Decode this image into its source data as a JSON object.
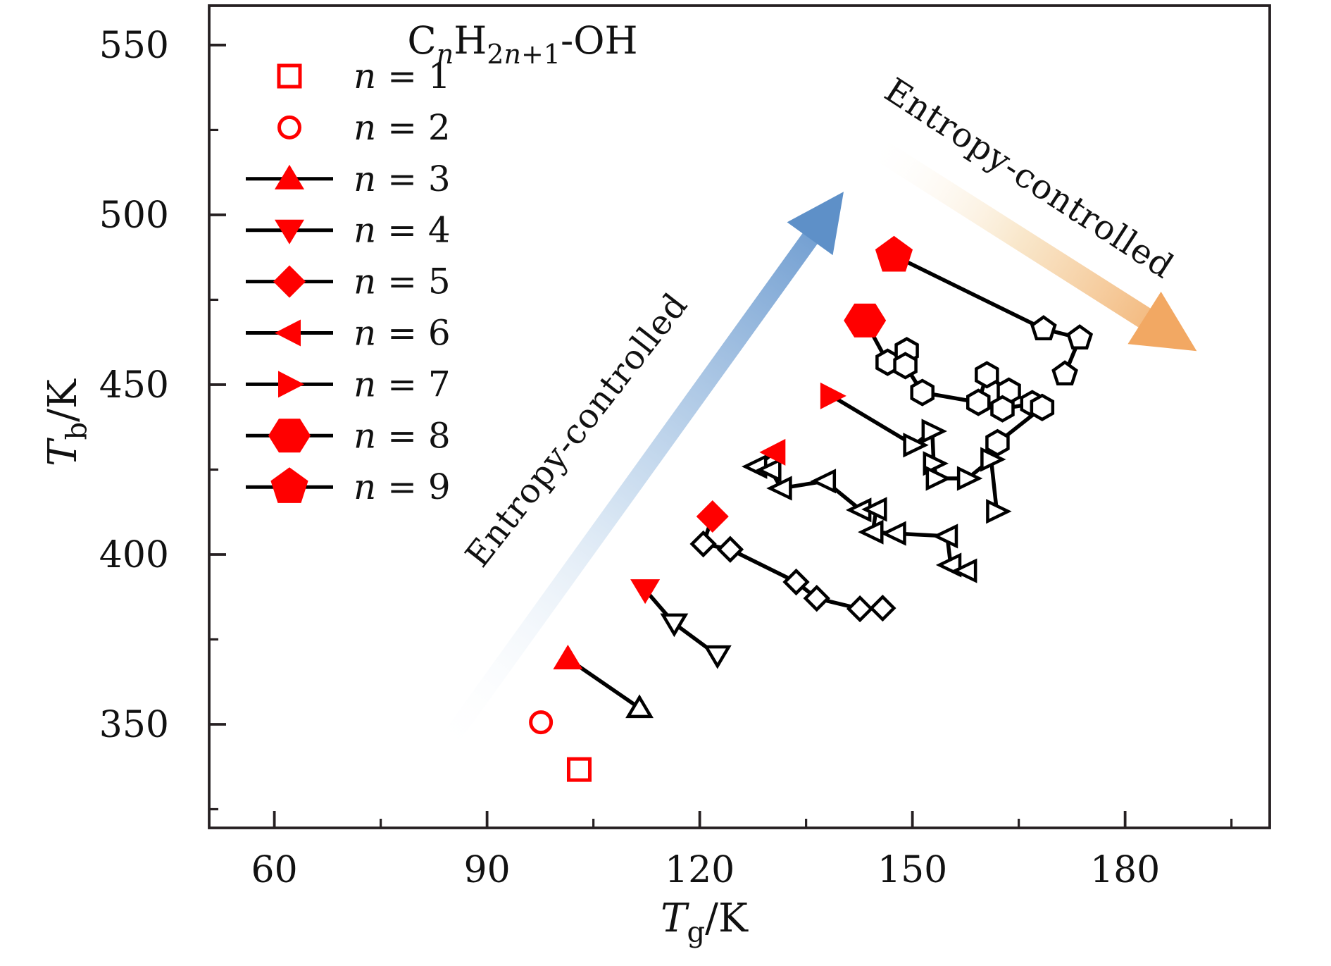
{
  "chart_data": {
    "type": "scatter",
    "title": "CnH2n+1-OH",
    "title_segments": [
      {
        "t": "C"
      },
      {
        "t": "n",
        "sub": true,
        "italic": true
      },
      {
        "t": "H"
      },
      {
        "t": "2",
        "sub": true
      },
      {
        "t": "n",
        "sub": true,
        "italic": true
      },
      {
        "t": "+1",
        "sub": true
      },
      {
        "t": "-OH"
      }
    ],
    "xlabel": "Tg/K",
    "ylabel": "Tb/K",
    "xlabel_segments": [
      {
        "t": "T",
        "italic": true
      },
      {
        "t": "g",
        "sub": true
      },
      {
        "t": "/K"
      }
    ],
    "ylabel_segments": [
      {
        "t": "T",
        "italic": true
      },
      {
        "t": "b",
        "sub": true
      },
      {
        "t": "/K"
      }
    ],
    "xlim": [
      50.8,
      200.4
    ],
    "ylim": [
      319.5,
      561.6
    ],
    "x_major_ticks": [
      60,
      90,
      120,
      150,
      180
    ],
    "x_minor_ticks": [
      75,
      105,
      135,
      165,
      195
    ],
    "y_major_ticks": [
      350,
      400,
      450,
      500,
      550
    ],
    "y_minor_ticks": [
      325,
      375,
      425,
      475,
      525
    ],
    "x_tick_labels": [
      "60",
      "90",
      "120",
      "150",
      "180"
    ],
    "y_tick_labels": [
      "350",
      "400",
      "450",
      "500",
      "550"
    ],
    "grid": false,
    "legend_position": "upper-left",
    "series": [
      {
        "name": "n = 1",
        "marker": "square",
        "red_filled": false,
        "red_point": [
          103.0,
          336.7
        ],
        "isomer_points": []
      },
      {
        "name": "n = 2",
        "marker": "circle",
        "red_filled": false,
        "red_point": [
          97.6,
          350.6
        ],
        "isomer_points": []
      },
      {
        "name": "n = 3",
        "marker": "triangle-up",
        "red_filled": true,
        "red_point": [
          101.4,
          369.3
        ],
        "isomer_points": [
          [
            111.5,
            354.8
          ]
        ]
      },
      {
        "name": "n = 4",
        "marker": "triangle-down",
        "red_filled": true,
        "red_point": [
          112.3,
          389.6
        ],
        "isomer_points": [
          [
            116.4,
            379.7
          ],
          [
            122.5,
            370.3
          ]
        ]
      },
      {
        "name": "n = 5",
        "marker": "diamond",
        "red_filled": true,
        "red_point": [
          121.8,
          411.2
        ],
        "isomer_points": [
          [
            120.5,
            403.1
          ],
          [
            124.3,
            401.5
          ],
          [
            133.6,
            391.9
          ],
          [
            136.5,
            387.1
          ],
          [
            142.6,
            384.0
          ],
          [
            145.8,
            384.2
          ]
        ]
      },
      {
        "name": "n = 6",
        "marker": "triangle-left",
        "red_filled": true,
        "red_point": [
          130.5,
          430.1
        ],
        "isomer_points": [
          [
            128.0,
            425.9
          ],
          [
            130.0,
            424.9
          ],
          [
            131.5,
            419.5
          ],
          [
            137.7,
            421.6
          ],
          [
            142.7,
            413.1
          ],
          [
            144.9,
            413.3
          ],
          [
            144.4,
            406.6
          ],
          [
            147.6,
            406.2
          ],
          [
            154.9,
            405.4
          ],
          [
            155.4,
            396.9
          ],
          [
            157.6,
            395.2
          ]
        ]
      },
      {
        "name": "n = 7",
        "marker": "triangle-right",
        "red_filled": true,
        "red_point": [
          138.6,
          446.7
        ],
        "isomer_points": [
          [
            150.2,
            432.2
          ],
          [
            152.8,
            436.3
          ],
          [
            153.0,
            426.8
          ],
          [
            153.4,
            422.4
          ],
          [
            157.8,
            422.4
          ],
          [
            161.1,
            428.0
          ],
          [
            161.9,
            412.7
          ]
        ]
      },
      {
        "name": "n = 8",
        "marker": "hexagon",
        "red_filled": true,
        "red_point": [
          143.3,
          468.9
        ],
        "isomer_points": [
          [
            146.5,
            456.6
          ],
          [
            149.2,
            460.0
          ],
          [
            149.0,
            455.6
          ],
          [
            151.4,
            447.7
          ],
          [
            159.3,
            444.8
          ],
          [
            160.5,
            452.9
          ],
          [
            163.6,
            448.1
          ],
          [
            162.7,
            442.9
          ],
          [
            166.9,
            444.4
          ],
          [
            168.3,
            443.3
          ],
          [
            162.0,
            432.9
          ]
        ]
      },
      {
        "name": "n = 9",
        "marker": "pentagon",
        "red_filled": true,
        "red_point": [
          147.4,
          488.0
        ],
        "isomer_points": [
          [
            168.5,
            466.4
          ],
          [
            173.6,
            463.7
          ],
          [
            171.5,
            453.1
          ]
        ]
      }
    ],
    "legend": {
      "items": [
        {
          "label": "n = 1",
          "marker": "square",
          "filled": false,
          "has_line": false
        },
        {
          "label": "n = 2",
          "marker": "circle",
          "filled": false,
          "has_line": false
        },
        {
          "label": "n = 3",
          "marker": "triangle-up",
          "filled": true,
          "has_line": true
        },
        {
          "label": "n = 4",
          "marker": "triangle-down",
          "filled": true,
          "has_line": true
        },
        {
          "label": "n = 5",
          "marker": "diamond",
          "filled": true,
          "has_line": true
        },
        {
          "label": "n = 6",
          "marker": "triangle-left",
          "filled": true,
          "has_line": true
        },
        {
          "label": "n = 7",
          "marker": "triangle-right",
          "filled": true,
          "has_line": true
        },
        {
          "label": "n = 8",
          "marker": "hexagon",
          "filled": true,
          "has_line": true
        },
        {
          "label": "n = 9",
          "marker": "pentagon",
          "filled": true,
          "has_line": true
        }
      ]
    },
    "annotations": {
      "arrows": [
        {
          "id": "blue",
          "from": [
            83.8,
            342.9
          ],
          "to": [
            140.3,
            506.8
          ],
          "width": 26,
          "head_len": 82,
          "head_w": 40,
          "color_start": "#ffffff",
          "color_mid": "#c9dcef",
          "color_end": "#6394cc",
          "head_color": "#5e90c8"
        },
        {
          "id": "orange",
          "from": [
            144.7,
            520.1
          ],
          "to": [
            190.1,
            459.9
          ],
          "width": 32,
          "head_len": 88,
          "head_w": 44,
          "color_start": "#ffffff",
          "color_mid": "#f8e3c2",
          "color_end": "#f1a862",
          "head_color": "#f2a863"
        }
      ],
      "texts": [
        {
          "text": "Entropy-controlled",
          "color": "#84b1dc",
          "center": [
            103.9,
            434.6
          ],
          "rotation_deg": -52
        },
        {
          "text": "Entropy-controlled",
          "color": "#f4ae7c",
          "center": [
            165.6,
            507.9
          ],
          "rotation_deg": 33
        }
      ]
    },
    "colors": {
      "red": "#ff0000",
      "black": "#000000",
      "axis": "#262022",
      "background": "#ffffff"
    }
  }
}
